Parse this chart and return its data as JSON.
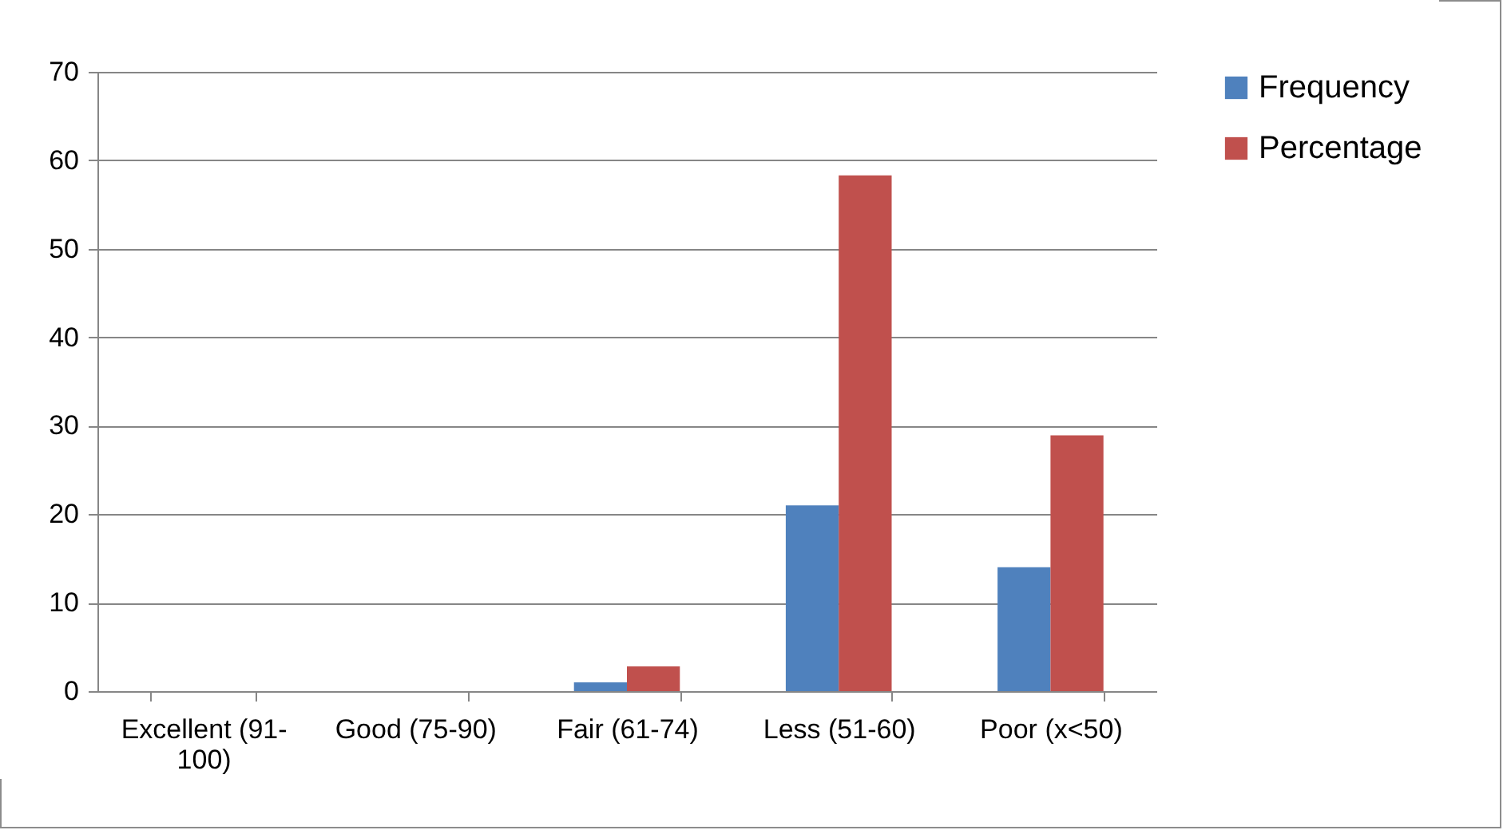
{
  "chart_data": {
    "type": "bar",
    "categories": [
      "Excellent (91-100)",
      "Good (75-90)",
      "Fair (61-74)",
      "Less (51-60)",
      "Poor (x<50)"
    ],
    "series": [
      {
        "name": "Frequency",
        "color": "#4f81bd",
        "values": [
          0,
          0,
          1,
          21,
          14
        ]
      },
      {
        "name": "Percentage",
        "color": "#c0504d",
        "values": [
          0,
          0,
          2.8,
          58.3,
          28.9
        ]
      }
    ],
    "ylim": [
      0,
      70
    ],
    "yticks": [
      0,
      10,
      20,
      30,
      40,
      50,
      60,
      70
    ],
    "grid": "y",
    "legend": "right"
  }
}
